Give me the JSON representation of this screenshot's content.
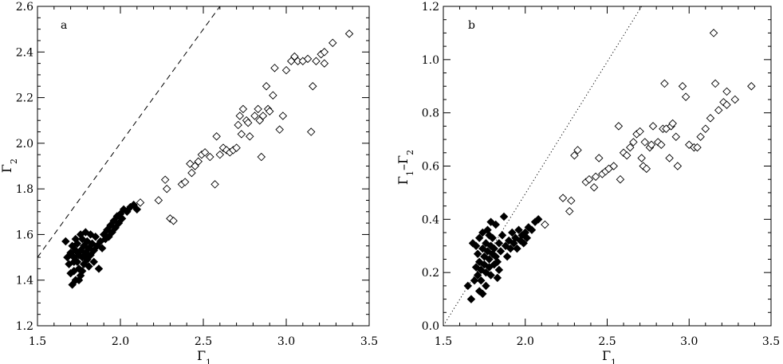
{
  "chart_data": [
    {
      "type": "scatter",
      "panel_label": "a",
      "xlabel": "Γ1",
      "ylabel": "Γ2",
      "xlim": [
        1.5,
        3.5
      ],
      "ylim": [
        1.2,
        2.6
      ],
      "xticks": [
        "1.5",
        "2.0",
        "2.5",
        "3.0",
        "3.5"
      ],
      "yticks": [
        "1.2",
        "1.4",
        "1.6",
        "1.8",
        "2.0",
        "2.2",
        "2.4",
        "2.6"
      ],
      "reference_line": {
        "style": "dashed",
        "points": [
          [
            1.5,
            1.5
          ],
          [
            2.6,
            2.6
          ]
        ]
      },
      "series": [
        {
          "marker": "filled-diamond",
          "points": [
            [
              1.67,
              1.57
            ],
            [
              1.68,
              1.5
            ],
            [
              1.69,
              1.47
            ],
            [
              1.7,
              1.52
            ],
            [
              1.7,
              1.43
            ],
            [
              1.71,
              1.38
            ],
            [
              1.71,
              1.55
            ],
            [
              1.72,
              1.5
            ],
            [
              1.72,
              1.44
            ],
            [
              1.73,
              1.53
            ],
            [
              1.73,
              1.4
            ],
            [
              1.74,
              1.48
            ],
            [
              1.74,
              1.56
            ],
            [
              1.75,
              1.51
            ],
            [
              1.75,
              1.45
            ],
            [
              1.76,
              1.53
            ],
            [
              1.76,
              1.42
            ],
            [
              1.77,
              1.58
            ],
            [
              1.77,
              1.5
            ],
            [
              1.78,
              1.47
            ],
            [
              1.78,
              1.55
            ],
            [
              1.79,
              1.52
            ],
            [
              1.79,
              1.61
            ],
            [
              1.8,
              1.49
            ],
            [
              1.8,
              1.57
            ],
            [
              1.81,
              1.54
            ],
            [
              1.81,
              1.46
            ],
            [
              1.82,
              1.51
            ],
            [
              1.82,
              1.6
            ],
            [
              1.83,
              1.56
            ],
            [
              1.84,
              1.48
            ],
            [
              1.84,
              1.53
            ],
            [
              1.85,
              1.59
            ],
            [
              1.86,
              1.55
            ],
            [
              1.87,
              1.45
            ],
            [
              1.88,
              1.57
            ],
            [
              1.89,
              1.54
            ],
            [
              1.9,
              1.6
            ],
            [
              1.91,
              1.58
            ],
            [
              1.92,
              1.62
            ],
            [
              1.93,
              1.59
            ],
            [
              1.94,
              1.64
            ],
            [
              1.95,
              1.61
            ],
            [
              1.96,
              1.66
            ],
            [
              1.97,
              1.63
            ],
            [
              1.98,
              1.68
            ],
            [
              1.99,
              1.65
            ],
            [
              2.0,
              1.69
            ],
            [
              2.01,
              1.67
            ],
            [
              2.02,
              1.71
            ],
            [
              2.04,
              1.7
            ],
            [
              2.06,
              1.72
            ],
            [
              2.08,
              1.73
            ],
            [
              2.1,
              1.71
            ],
            [
              1.73,
              1.58
            ],
            [
              1.75,
              1.4
            ],
            [
              1.77,
              1.44
            ],
            [
              1.79,
              1.5
            ],
            [
              1.76,
              1.6
            ],
            [
              1.72,
              1.48
            ]
          ]
        },
        {
          "marker": "open-diamond",
          "points": [
            [
              2.12,
              1.74
            ],
            [
              2.23,
              1.75
            ],
            [
              2.27,
              1.84
            ],
            [
              2.28,
              1.8
            ],
            [
              2.3,
              1.67
            ],
            [
              2.32,
              1.66
            ],
            [
              2.37,
              1.82
            ],
            [
              2.39,
              1.83
            ],
            [
              2.42,
              1.91
            ],
            [
              2.43,
              1.87
            ],
            [
              2.45,
              1.9
            ],
            [
              2.47,
              1.92
            ],
            [
              2.49,
              1.95
            ],
            [
              2.51,
              1.96
            ],
            [
              2.54,
              1.94
            ],
            [
              2.57,
              1.82
            ],
            [
              2.58,
              2.03
            ],
            [
              2.6,
              1.95
            ],
            [
              2.62,
              1.98
            ],
            [
              2.64,
              1.97
            ],
            [
              2.66,
              1.96
            ],
            [
              2.68,
              1.97
            ],
            [
              2.7,
              1.98
            ],
            [
              2.71,
              2.08
            ],
            [
              2.72,
              2.12
            ],
            [
              2.73,
              2.04
            ],
            [
              2.74,
              2.15
            ],
            [
              2.76,
              2.1
            ],
            [
              2.77,
              2.09
            ],
            [
              2.78,
              2.03
            ],
            [
              2.81,
              2.12
            ],
            [
              2.83,
              2.15
            ],
            [
              2.84,
              2.1
            ],
            [
              2.85,
              1.94
            ],
            [
              2.86,
              2.12
            ],
            [
              2.88,
              2.25
            ],
            [
              2.89,
              2.15
            ],
            [
              2.9,
              2.14
            ],
            [
              2.92,
              2.21
            ],
            [
              2.93,
              2.33
            ],
            [
              2.96,
              2.06
            ],
            [
              2.98,
              2.12
            ],
            [
              3.0,
              2.32
            ],
            [
              3.03,
              2.36
            ],
            [
              3.05,
              2.38
            ],
            [
              3.07,
              2.36
            ],
            [
              3.1,
              2.36
            ],
            [
              3.13,
              2.37
            ],
            [
              3.15,
              2.05
            ],
            [
              3.16,
              2.25
            ],
            [
              3.18,
              2.36
            ],
            [
              3.21,
              2.39
            ],
            [
              3.23,
              2.4
            ],
            [
              3.23,
              2.35
            ],
            [
              3.28,
              2.44
            ],
            [
              3.38,
              2.48
            ]
          ]
        }
      ]
    },
    {
      "type": "scatter",
      "panel_label": "b",
      "xlabel": "Γ1",
      "ylabel": "Γ1–Γ2",
      "xlim": [
        1.5,
        3.5
      ],
      "ylim": [
        0.0,
        1.2
      ],
      "xticks": [
        "1.5",
        "2.0",
        "2.5",
        "3.0",
        "3.5"
      ],
      "yticks": [
        "0.0",
        "0.2",
        "0.4",
        "0.6",
        "0.8",
        "1.0",
        "1.2"
      ],
      "reference_line": {
        "style": "dotted",
        "points": [
          [
            1.5,
            0.0
          ],
          [
            2.71,
            1.2
          ]
        ]
      },
      "series": [
        {
          "marker": "filled-diamond",
          "points": [
            [
              1.65,
              0.15
            ],
            [
              1.67,
              0.1
            ],
            [
              1.69,
              0.17
            ],
            [
              1.7,
              0.22
            ],
            [
              1.7,
              0.3
            ],
            [
              1.71,
              0.19
            ],
            [
              1.71,
              0.27
            ],
            [
              1.72,
              0.24
            ],
            [
              1.72,
              0.33
            ],
            [
              1.73,
              0.21
            ],
            [
              1.73,
              0.17
            ],
            [
              1.74,
              0.29
            ],
            [
              1.74,
              0.35
            ],
            [
              1.75,
              0.23
            ],
            [
              1.75,
              0.26
            ],
            [
              1.76,
              0.2
            ],
            [
              1.76,
              0.31
            ],
            [
              1.77,
              0.28
            ],
            [
              1.77,
              0.36
            ],
            [
              1.78,
              0.22
            ],
            [
              1.78,
              0.25
            ],
            [
              1.79,
              0.3
            ],
            [
              1.79,
              0.19
            ],
            [
              1.8,
              0.27
            ],
            [
              1.8,
              0.33
            ],
            [
              1.81,
              0.23
            ],
            [
              1.81,
              0.29
            ],
            [
              1.82,
              0.26
            ],
            [
              1.82,
              0.38
            ],
            [
              1.83,
              0.24
            ],
            [
              1.84,
              0.31
            ],
            [
              1.84,
              0.21
            ],
            [
              1.85,
              0.28
            ],
            [
              1.86,
              0.34
            ],
            [
              1.87,
              0.41
            ],
            [
              1.88,
              0.3
            ],
            [
              1.89,
              0.26
            ],
            [
              1.9,
              0.32
            ],
            [
              1.91,
              0.29
            ],
            [
              1.92,
              0.35
            ],
            [
              1.93,
              0.31
            ],
            [
              1.94,
              0.33
            ],
            [
              1.95,
              0.29
            ],
            [
              1.96,
              0.36
            ],
            [
              1.97,
              0.32
            ],
            [
              1.98,
              0.34
            ],
            [
              1.99,
              0.31
            ],
            [
              2.0,
              0.35
            ],
            [
              2.01,
              0.33
            ],
            [
              2.02,
              0.37
            ],
            [
              2.04,
              0.36
            ],
            [
              2.06,
              0.39
            ],
            [
              2.08,
              0.4
            ],
            [
              1.72,
              0.13
            ],
            [
              1.76,
              0.15
            ],
            [
              1.79,
              0.39
            ],
            [
              1.68,
              0.31
            ],
            [
              1.74,
              0.12
            ],
            [
              1.83,
              0.18
            ],
            [
              1.78,
              0.34
            ]
          ]
        },
        {
          "marker": "open-diamond",
          "points": [
            [
              2.12,
              0.38
            ],
            [
              2.23,
              0.48
            ],
            [
              2.27,
              0.43
            ],
            [
              2.28,
              0.47
            ],
            [
              2.3,
              0.64
            ],
            [
              2.32,
              0.66
            ],
            [
              2.37,
              0.54
            ],
            [
              2.39,
              0.55
            ],
            [
              2.42,
              0.52
            ],
            [
              2.43,
              0.56
            ],
            [
              2.45,
              0.63
            ],
            [
              2.47,
              0.57
            ],
            [
              2.49,
              0.58
            ],
            [
              2.51,
              0.59
            ],
            [
              2.54,
              0.6
            ],
            [
              2.57,
              0.75
            ],
            [
              2.58,
              0.55
            ],
            [
              2.6,
              0.65
            ],
            [
              2.62,
              0.64
            ],
            [
              2.64,
              0.67
            ],
            [
              2.66,
              0.69
            ],
            [
              2.68,
              0.72
            ],
            [
              2.7,
              0.73
            ],
            [
              2.71,
              0.63
            ],
            [
              2.72,
              0.6
            ],
            [
              2.73,
              0.69
            ],
            [
              2.74,
              0.59
            ],
            [
              2.76,
              0.67
            ],
            [
              2.77,
              0.68
            ],
            [
              2.78,
              0.75
            ],
            [
              2.81,
              0.69
            ],
            [
              2.83,
              0.68
            ],
            [
              2.84,
              0.74
            ],
            [
              2.85,
              0.91
            ],
            [
              2.86,
              0.74
            ],
            [
              2.88,
              0.63
            ],
            [
              2.89,
              0.75
            ],
            [
              2.9,
              0.76
            ],
            [
              2.92,
              0.71
            ],
            [
              2.93,
              0.6
            ],
            [
              2.96,
              0.9
            ],
            [
              2.98,
              0.86
            ],
            [
              3.0,
              0.68
            ],
            [
              3.03,
              0.67
            ],
            [
              3.05,
              0.67
            ],
            [
              3.07,
              0.71
            ],
            [
              3.1,
              0.74
            ],
            [
              3.13,
              0.78
            ],
            [
              3.15,
              1.1
            ],
            [
              3.16,
              0.91
            ],
            [
              3.18,
              0.81
            ],
            [
              3.21,
              0.84
            ],
            [
              3.23,
              0.83
            ],
            [
              3.23,
              0.88
            ],
            [
              3.28,
              0.85
            ],
            [
              3.38,
              0.9
            ]
          ]
        }
      ]
    }
  ]
}
